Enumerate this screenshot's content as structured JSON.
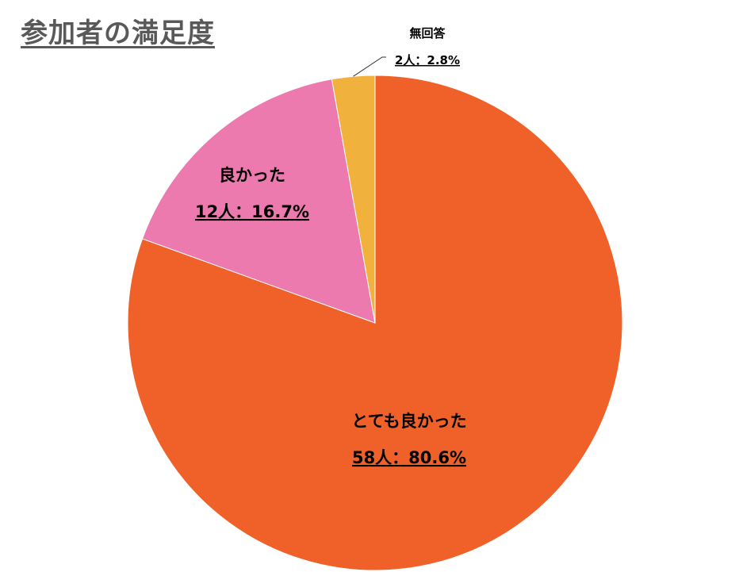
{
  "title": "参加者の満足度",
  "chart_data": {
    "type": "pie",
    "title": "参加者の満足度",
    "start_angle_deg": 0,
    "direction": "clockwise",
    "slices": [
      {
        "label": "とても良かった",
        "count": 58,
        "count_label": "58人",
        "percent": 80.6,
        "percent_label": "80.6%",
        "color": "#F0612A"
      },
      {
        "label": "良かった",
        "count": 12,
        "count_label": "12人",
        "percent": 16.7,
        "percent_label": "16.7%",
        "color": "#EC7AAE"
      },
      {
        "label": "無回答",
        "count": 2,
        "count_label": "2人",
        "percent": 2.8,
        "percent_label": "2.8%",
        "color": "#F0B23C"
      }
    ],
    "label_separator": "："
  }
}
